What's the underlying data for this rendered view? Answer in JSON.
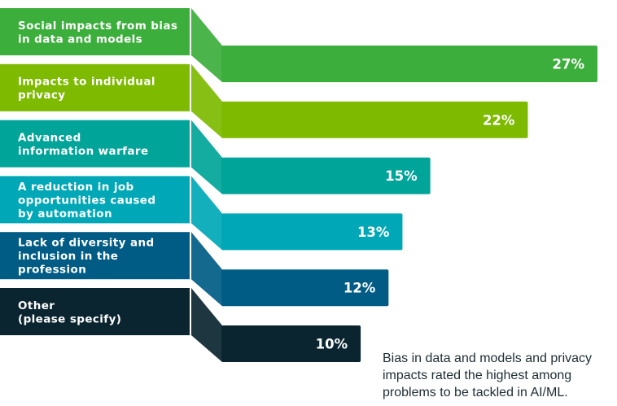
{
  "chart_data": {
    "type": "bar",
    "orientation": "horizontal",
    "categories": [
      "Social impacts from bias in data and models",
      "Impacts to individual privacy",
      "Advanced information warfare",
      "A reduction in job opportunities caused by automation",
      "Lack of diversity and inclusion in the profession",
      "Other (please specify)"
    ],
    "category_lines": [
      [
        "Social impacts from bias",
        "in data and models"
      ],
      [
        "Impacts to individual",
        "privacy"
      ],
      [
        "Advanced",
        "information warfare"
      ],
      [
        "A reduction in job",
        "opportunities caused",
        "by automation"
      ],
      [
        "Lack of diversity and",
        "inclusion in the",
        "profession"
      ],
      [
        "Other",
        "(please specify)"
      ]
    ],
    "values": [
      27,
      22,
      15,
      13,
      12,
      10
    ],
    "value_labels": [
      "27%",
      "22%",
      "15%",
      "13%",
      "12%",
      "10%"
    ],
    "unit": "%",
    "colors": [
      "#3cae3c",
      "#7dba00",
      "#00a499",
      "#00a8b7",
      "#005c84",
      "#0a2530"
    ],
    "grid": false,
    "legend": "none"
  },
  "annotation": {
    "lines": [
      "Bias in data and models and privacy",
      "impacts rated the highest among",
      "problems to be tackled in AI/ML."
    ]
  }
}
